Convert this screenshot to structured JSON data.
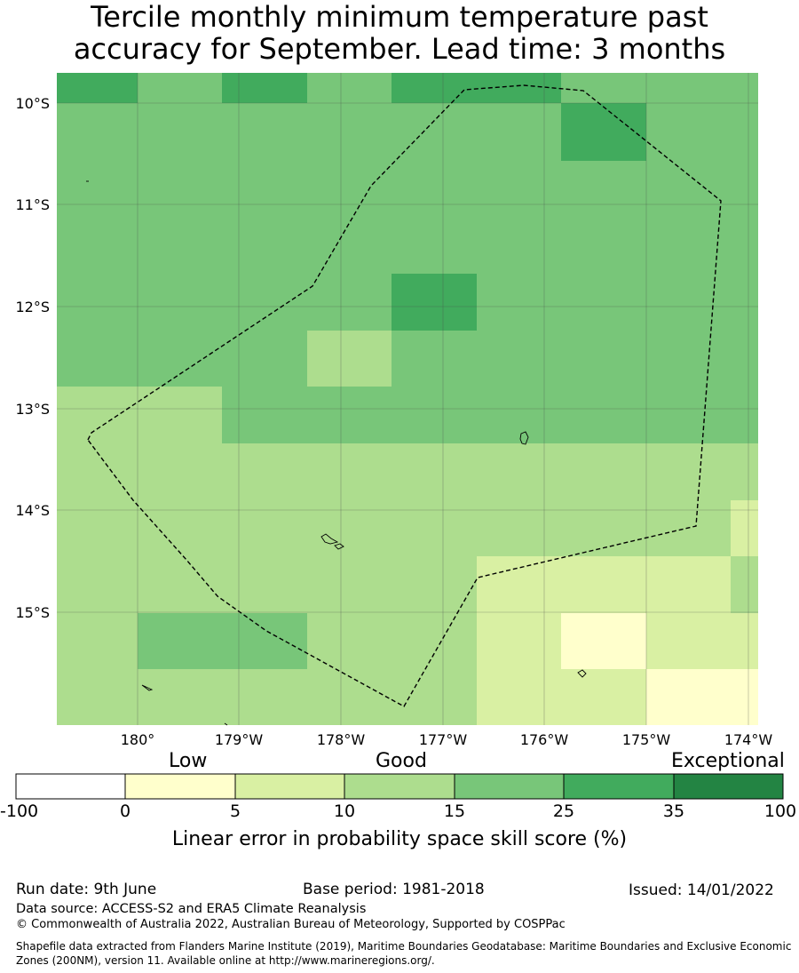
{
  "title_line1": "Tercile monthly minimum temperature past",
  "title_line2": "accuracy for September. Lead time: 3 months",
  "map": {
    "lat_ticks": [
      "10°S",
      "11°S",
      "12°S",
      "13°S",
      "14°S",
      "15°S"
    ],
    "lon_ticks": [
      "180°",
      "179°W",
      "178°W",
      "177°W",
      "176°W",
      "175°W",
      "174°W"
    ],
    "grid_lat_values": [
      -10,
      -11,
      -12,
      -13,
      -14,
      -15
    ],
    "grid_lon_values": [
      -180,
      -179,
      -178,
      -177,
      -176,
      -175,
      -174
    ],
    "boundary_style": "dashed",
    "colors": {
      "c0": "#ffffff",
      "c1": "#ffffcc",
      "c2": "#d9f0a3",
      "c3": "#addd8e",
      "c4": "#78c679",
      "c5": "#41ab5d",
      "c6": "#238443"
    }
  },
  "colorbar": {
    "categories": [
      {
        "label": "Low",
        "value": 5
      },
      {
        "label": "Good",
        "value": 15
      },
      {
        "label": "Exceptional",
        "value": 100
      }
    ],
    "ticks": [
      "-100",
      "0",
      "5",
      "10",
      "15",
      "25",
      "35",
      "100"
    ],
    "bins": [
      {
        "from": -100,
        "to": 0,
        "color": "#ffffff"
      },
      {
        "from": 0,
        "to": 5,
        "color": "#ffffcc"
      },
      {
        "from": 5,
        "to": 10,
        "color": "#d9f0a3"
      },
      {
        "from": 10,
        "to": 15,
        "color": "#addd8e"
      },
      {
        "from": 15,
        "to": 25,
        "color": "#78c679"
      },
      {
        "from": 25,
        "to": 35,
        "color": "#41ab5d"
      },
      {
        "from": 35,
        "to": 100,
        "color": "#238443"
      }
    ],
    "label": "Linear error in probability space skill score (%)"
  },
  "footer": {
    "run_date": "Run date: 9th June",
    "base_period": "Base period: 1981-2018",
    "issued": "Issued: 14/01/2022",
    "data_source": "Data source: ACCESS-S2 and ERA5 Climate Reanalysis",
    "copyright": "© Commonwealth of Australia 2022, Australian Bureau of Meteorology, Supported by COSPPac",
    "shapefile": "Shapefile data extracted from Flanders Marine Institute (2019), Maritime Boundaries Geodatabase: Maritime Boundaries and Exclusive Economic Zones (200NM), version 11. Available online at http://www.marineregions.org/."
  }
}
